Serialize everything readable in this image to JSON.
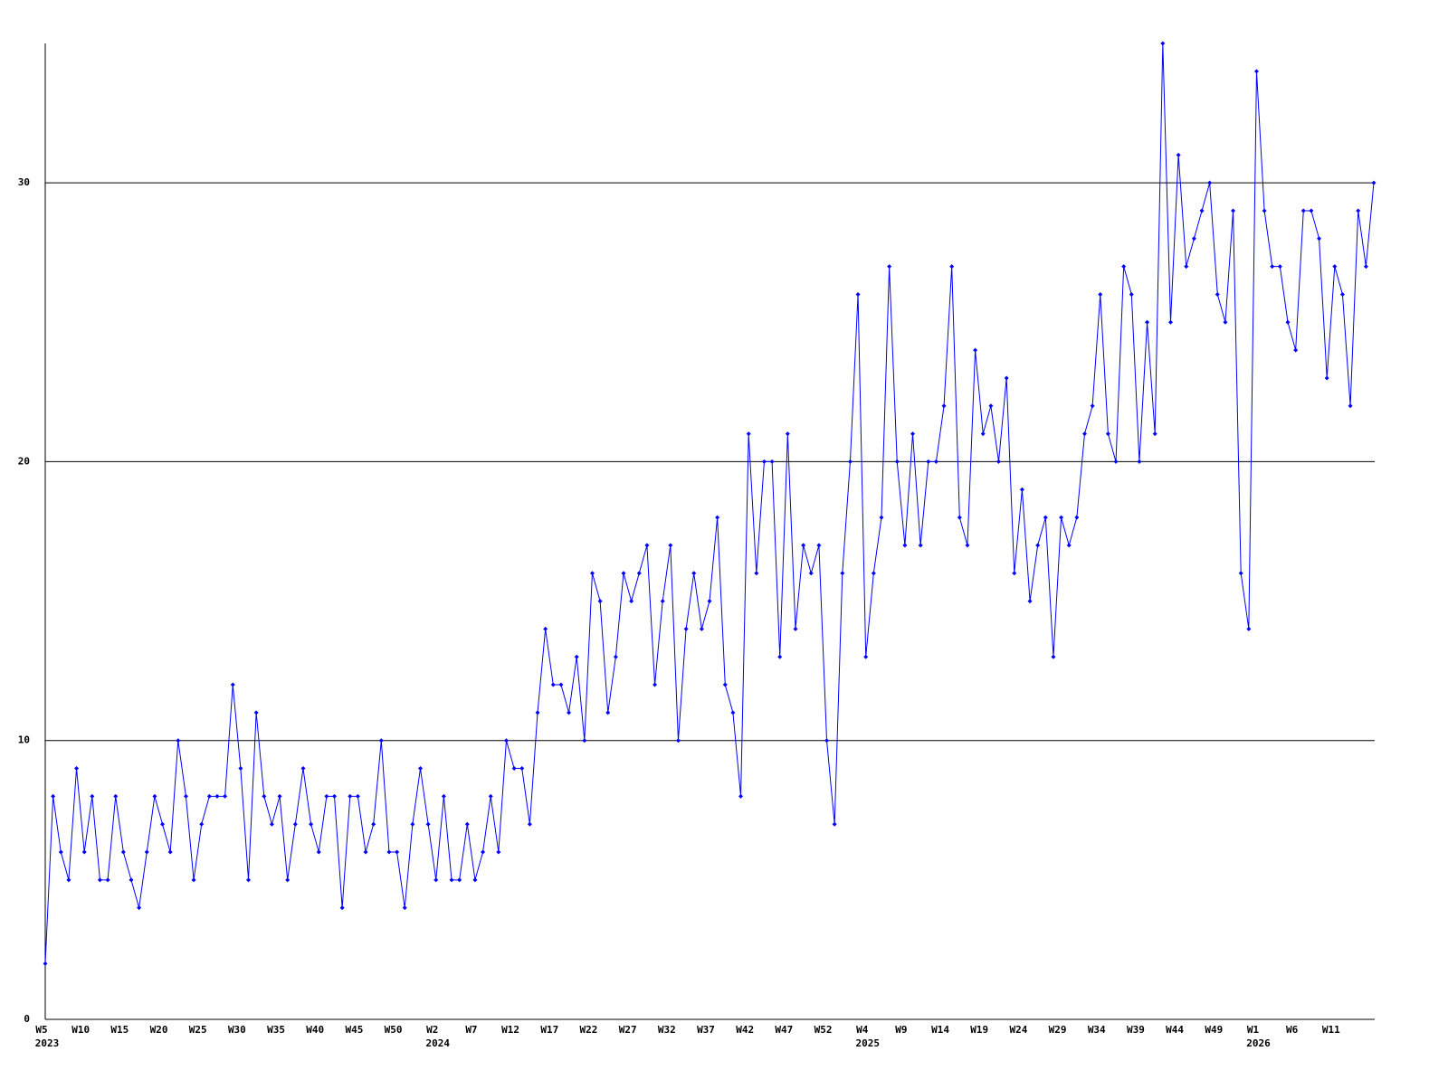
{
  "chart_data": {
    "type": "line",
    "categories": [
      "W5",
      null,
      null,
      null,
      null,
      "W10",
      null,
      null,
      null,
      null,
      "W15",
      null,
      null,
      null,
      null,
      "W20",
      null,
      null,
      null,
      null,
      "W25",
      null,
      null,
      null,
      null,
      "W30",
      null,
      null,
      null,
      null,
      "W35",
      null,
      null,
      null,
      null,
      "W40",
      null,
      null,
      null,
      null,
      "W45",
      null,
      null,
      null,
      null,
      "W50",
      null,
      null,
      null,
      null,
      "W2",
      null,
      null,
      null,
      null,
      "W7",
      null,
      null,
      null,
      null,
      "W12",
      null,
      null,
      null,
      null,
      "W17",
      null,
      null,
      null,
      null,
      "W22",
      null,
      null,
      null,
      null,
      "W27",
      null,
      null,
      null,
      null,
      "W32",
      null,
      null,
      null,
      null,
      "W37",
      null,
      null,
      null,
      null,
      "W42",
      null,
      null,
      null,
      null,
      "W47",
      null,
      null,
      null,
      null,
      "W52",
      null,
      null,
      null,
      null,
      "W4",
      null,
      null,
      null,
      null,
      "W9",
      null,
      null,
      null,
      null,
      "W14",
      null,
      null,
      null,
      null,
      "W19",
      null,
      null,
      null,
      null,
      "W24",
      null,
      null,
      null,
      null,
      "W29",
      null,
      null,
      null,
      null,
      "W34",
      null,
      null,
      null,
      null,
      "W39",
      null,
      null,
      null,
      null,
      "W44",
      null,
      null,
      null,
      null,
      "W49",
      null,
      null,
      null,
      null,
      "W1",
      null,
      null,
      null,
      null,
      "W6",
      null,
      null,
      null,
      null,
      "W11",
      null,
      null,
      null,
      null,
      null
    ],
    "years": [
      "2023",
      null,
      null,
      null,
      null,
      null,
      null,
      null,
      null,
      null,
      null,
      null,
      null,
      null,
      null,
      null,
      null,
      null,
      null,
      null,
      null,
      null,
      null,
      null,
      null,
      null,
      null,
      null,
      null,
      null,
      null,
      null,
      null,
      null,
      null,
      null,
      null,
      null,
      null,
      null,
      null,
      null,
      null,
      null,
      null,
      null,
      null,
      null,
      null,
      null,
      "2024",
      null,
      null,
      null,
      null,
      null,
      null,
      null,
      null,
      null,
      null,
      null,
      null,
      null,
      null,
      null,
      null,
      null,
      null,
      null,
      null,
      null,
      null,
      null,
      null,
      null,
      null,
      null,
      null,
      null,
      null,
      null,
      null,
      null,
      null,
      null,
      null,
      null,
      null,
      null,
      null,
      null,
      null,
      null,
      null,
      null,
      null,
      null,
      null,
      null,
      null,
      null,
      null,
      null,
      null,
      "2025",
      null,
      null,
      null,
      null,
      null,
      null,
      null,
      null,
      null,
      null,
      null,
      null,
      null,
      null,
      null,
      null,
      null,
      null,
      null,
      null,
      null,
      null,
      null,
      null,
      null,
      null,
      null,
      null,
      null,
      null,
      null,
      null,
      null,
      null,
      null,
      null,
      null,
      null,
      null,
      null,
      null,
      null,
      null,
      null,
      null,
      null,
      null,
      null,
      null,
      "2026",
      null,
      null,
      null,
      null,
      null,
      null,
      null,
      null,
      null,
      null,
      null,
      null,
      null,
      null,
      null
    ],
    "values": [
      2,
      8,
      6,
      5,
      9,
      6,
      8,
      5,
      5,
      8,
      6,
      5,
      4,
      6,
      8,
      7,
      6,
      10,
      8,
      5,
      7,
      8,
      8,
      8,
      12,
      9,
      5,
      11,
      8,
      7,
      8,
      5,
      7,
      9,
      7,
      6,
      8,
      8,
      4,
      8,
      8,
      6,
      7,
      10,
      6,
      6,
      4,
      7,
      9,
      7,
      5,
      8,
      5,
      5,
      7,
      5,
      6,
      8,
      6,
      10,
      9,
      9,
      7,
      11,
      14,
      12,
      12,
      11,
      13,
      10,
      16,
      15,
      11,
      13,
      16,
      15,
      16,
      17,
      12,
      15,
      17,
      10,
      14,
      16,
      14,
      15,
      18,
      12,
      11,
      8,
      21,
      16,
      20,
      20,
      13,
      21,
      14,
      17,
      16,
      17,
      10,
      7,
      16,
      20,
      26,
      13,
      16,
      18,
      27,
      20,
      17,
      21,
      17,
      20,
      20,
      22,
      27,
      18,
      17,
      24,
      21,
      22,
      20,
      23,
      16,
      19,
      15,
      17,
      18,
      13,
      18,
      17,
      18,
      21,
      22,
      26,
      21,
      20,
      27,
      26,
      20,
      25,
      21,
      35,
      25,
      31,
      27,
      28,
      29,
      30,
      26,
      25,
      29,
      16,
      14,
      34,
      29,
      27,
      27,
      25,
      24,
      29,
      29,
      28,
      23,
      27,
      26,
      22,
      29,
      27,
      30
    ],
    "color": "#0000ff",
    "ylim": [
      0,
      35
    ],
    "yticks": [
      0,
      10,
      20,
      30
    ],
    "grid": true
  }
}
